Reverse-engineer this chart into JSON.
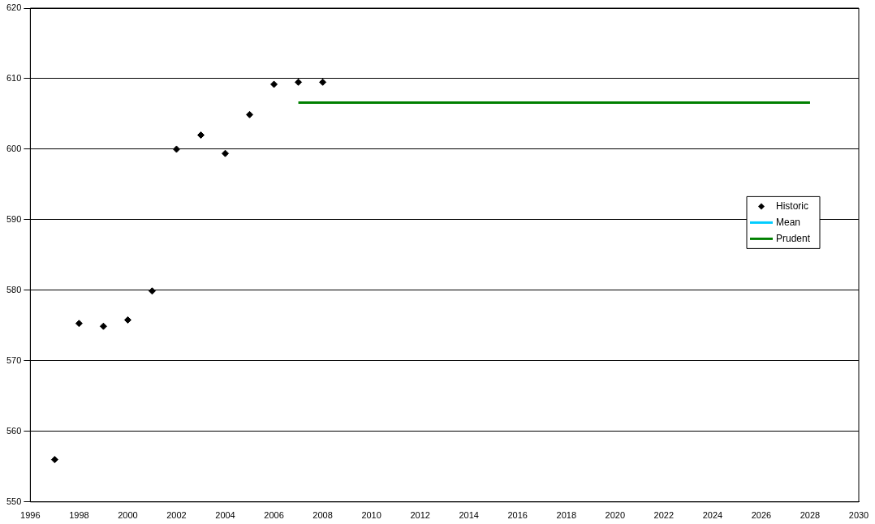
{
  "chart_data": {
    "type": "scatter",
    "xlim": [
      1996,
      2030
    ],
    "xticks": [
      1996,
      1998,
      2000,
      2002,
      2004,
      2006,
      2008,
      2010,
      2012,
      2014,
      2016,
      2018,
      2020,
      2022,
      2024,
      2026,
      2028,
      2030
    ],
    "ylim": [
      550,
      620
    ],
    "yticks": [
      550,
      560,
      570,
      580,
      590,
      600,
      610,
      620
    ],
    "grid": "y",
    "legend": "right",
    "series": [
      {
        "name": "Historic",
        "marker": "diamond",
        "color": "#000000",
        "x": [
          1997,
          1998,
          1999,
          2000,
          2001,
          2002,
          2003,
          2004,
          2005,
          2006,
          2007,
          2008
        ],
        "values": [
          556,
          575.3,
          574.9,
          575.8,
          579.9,
          600,
          602,
          599.4,
          604.9,
          609.2,
          609.5,
          609.5
        ]
      },
      {
        "name": "Mean",
        "type": "line",
        "marker": "none",
        "color": "#00ccff"
      },
      {
        "name": "Prudent",
        "type": "line",
        "marker": "none",
        "color": "#008000",
        "x": [
          2007,
          2028
        ],
        "values": [
          606.6,
          606.6
        ]
      }
    ]
  }
}
